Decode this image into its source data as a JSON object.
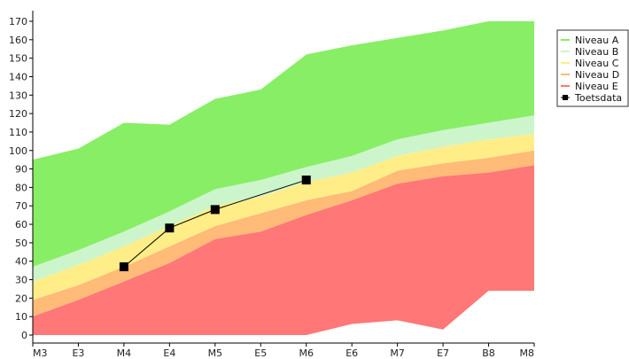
{
  "chart_data": {
    "type": "area",
    "categories": [
      "M3",
      "E3",
      "M4",
      "E4",
      "M5",
      "E5",
      "M6",
      "E6",
      "M7",
      "E7",
      "B8",
      "M8"
    ],
    "ylim": [
      0,
      170
    ],
    "yticks": [
      0,
      10,
      20,
      30,
      40,
      50,
      60,
      70,
      80,
      90,
      100,
      110,
      120,
      130,
      140,
      150,
      160,
      170
    ],
    "grid": false,
    "legend_position": "right",
    "bands": [
      {
        "name": "Niveau A",
        "color": "#88ee66",
        "upper": [
          95,
          101,
          115,
          114,
          128,
          133,
          152,
          157,
          161,
          165,
          170,
          170
        ],
        "lower": [
          37,
          46,
          56,
          67,
          79,
          84,
          91,
          97,
          106,
          111,
          115,
          119
        ]
      },
      {
        "name": "Niveau B",
        "color": "#ccf5cc",
        "upper": [
          37,
          46,
          56,
          67,
          79,
          84,
          91,
          97,
          106,
          111,
          115,
          119
        ],
        "lower": [
          29,
          38,
          48,
          59,
          70,
          75,
          83,
          88,
          97,
          102,
          106,
          109
        ]
      },
      {
        "name": "Niveau C",
        "color": "#ffee88",
        "upper": [
          29,
          38,
          48,
          59,
          70,
          75,
          83,
          88,
          97,
          102,
          106,
          109
        ],
        "lower": [
          19,
          27,
          37,
          48,
          59,
          66,
          73,
          78,
          89,
          93,
          96,
          100
        ]
      },
      {
        "name": "Niveau D",
        "color": "#ffbb77",
        "upper": [
          19,
          27,
          37,
          48,
          59,
          66,
          73,
          78,
          89,
          93,
          96,
          100
        ],
        "lower": [
          10,
          19,
          29,
          39,
          52,
          56,
          65,
          73,
          82,
          86,
          88,
          92
        ]
      },
      {
        "name": "Niveau E",
        "color": "#ff7777",
        "upper": [
          10,
          19,
          29,
          39,
          52,
          56,
          65,
          73,
          82,
          86,
          88,
          92
        ],
        "lower": [
          0,
          0,
          0,
          0,
          0,
          0,
          0,
          6,
          8,
          3,
          24,
          24
        ]
      }
    ],
    "series": [
      {
        "name": "Toetsdata",
        "color": "#000000",
        "x": [
          "M4",
          "E4",
          "M5",
          "M6"
        ],
        "values": [
          37,
          58,
          68,
          84
        ]
      }
    ]
  }
}
